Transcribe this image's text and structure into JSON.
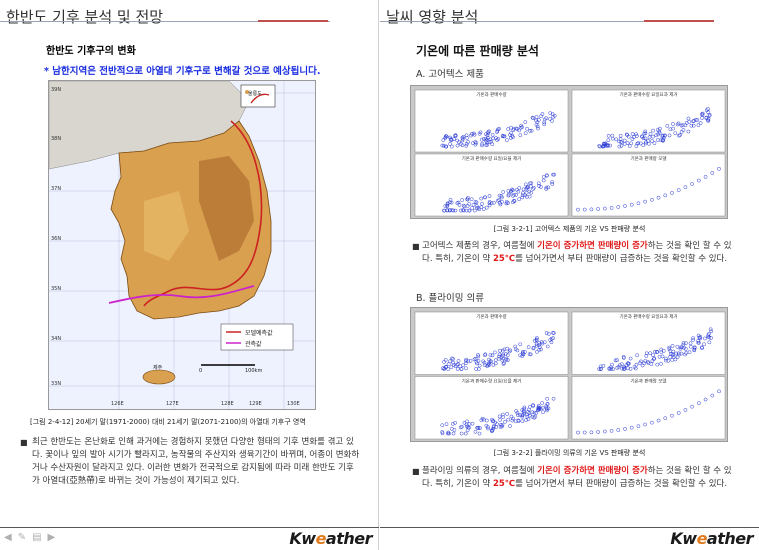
{
  "left": {
    "title": "한반도 기후 분석 및 전망",
    "subheading": "한반도 기후구의 변화",
    "highlight": "* 남한지역은 전반적으로 아열대 기후구로 변해갈 것으로 예상됩니다.",
    "map": {
      "legend_model": "모델예측값",
      "legend_observed": "관측값",
      "scale_zero": "0",
      "scale_km": "100km",
      "island_label": "제주",
      "inset_label": "울릉도",
      "lat_labels": [
        "39N",
        "38N",
        "37N",
        "36N",
        "35N",
        "34N",
        "33N"
      ],
      "lon_labels": [
        "126E",
        "127E",
        "128E",
        "129E",
        "130E"
      ]
    },
    "caption": "[그림 2-4-12]  20세기 말(1971-2000) 대비 21세기 말(2071-2100)의 아열대 기후구 영역",
    "body": "최근 한반도는 온난화로 인해 과거에는 경험하지 못했던 다양한 형태의 기후 변화를 겪고 있다. 꽃이나 잎의 발아 시기가 빨라지고, 농작물의 주산지와 생육기간이 바뀌며, 어종이 변화하거나 수산자원이 달라지고 있다. 이러한 변화가 전국적으로 감지됨에 따라 미래 한반도 기후가 아열대(亞熱帶)로 바뀌는 것이 가능성이 제기되고 있다.",
    "logo_prefix": "Kw",
    "logo_mid": "e",
    "logo_suffix": "ather"
  },
  "right": {
    "title": "날씨 영향 분석",
    "heading": "기온에 따른 판매량 분석",
    "section_a": "A. 고어텍스 제품",
    "section_b": "B. 플라이밍 의류",
    "panel_a_titles": [
      "기온과 판매수량",
      "기온과 판매수량 요일요과 제거",
      "기온과 판매수량 요일/요율 제거",
      "기온과 판매량 모델"
    ],
    "panel_b_titles": [
      "기온과 판매수량",
      "기온과 판매수량 요일요과 제거",
      "기온과 판매수량 요일/요율 제거",
      "기온과 판매량 모델"
    ],
    "caption_a": "[그림 3-2-1]  고어텍스 제품의 기온 VS 판매량 분석",
    "caption_b": "[그림 3-2-2]  플라이밍 의류의 기온 VS 판매량 분석",
    "body_a_pre": "고어텍스 제품의 경우, 여름철에 ",
    "body_a_red": "기온이 증가하면 판매량이 증가",
    "body_a_mid": "하는 것을 확인 할 수 있다. 특히, 기온이 약 ",
    "body_a_temp": "25℃",
    "body_a_post": "를 넘어가면서 부터 판매량이 급증하는 것을 확인할 수 있다.",
    "body_b_pre": "플라이밍 의류의 경우, 여름철에 ",
    "body_b_red": "기온이 증가하면 판매량이 증가",
    "body_b_mid": "하는 것을 확인 할 수 있다. 특히, 기온이 약 ",
    "body_b_temp": "25℃",
    "body_b_post": "를 넘어가면서 부터 판매량이 급증하는 것을 확인할 수 있다.",
    "logo_prefix": "Kw",
    "logo_mid": "e",
    "logo_suffix": "ather"
  },
  "colors": {
    "highlight_blue": "#1a2de0",
    "emphasis_red": "#e01818",
    "scatter_blue": "#2b3bd6",
    "panel_gray": "#c9c9c9",
    "accent_orange": "#e07b1f"
  }
}
